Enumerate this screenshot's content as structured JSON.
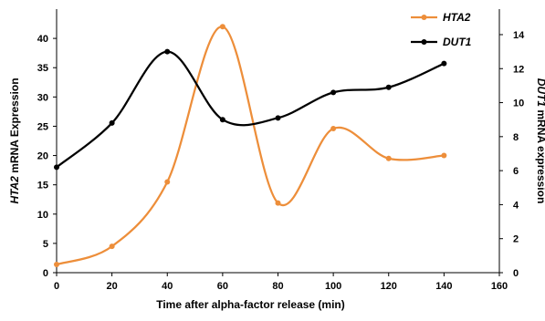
{
  "chart_data": {
    "type": "line",
    "title": "",
    "xlabel": "Time after alpha-factor release (min)",
    "ylabel_left": {
      "gene": "HTA2",
      "rest": " mRNA Expression"
    },
    "ylabel_right": {
      "gene": "DUT1",
      "rest": " mRNA expression"
    },
    "xlim": [
      0,
      160
    ],
    "xticks": [
      0,
      20,
      40,
      60,
      80,
      100,
      120,
      140,
      160
    ],
    "ylim_left": [
      0,
      45
    ],
    "yticks_left": [
      0,
      5,
      10,
      15,
      20,
      25,
      30,
      35,
      40
    ],
    "ylim_right": [
      0,
      15.5
    ],
    "yticks_right": [
      0,
      2,
      4,
      6,
      8,
      10,
      12,
      14
    ],
    "grid": false,
    "legend_position": "top-right",
    "series": [
      {
        "name": "HTA2",
        "axis": "left",
        "color": "#ED8E3A",
        "marker": "circle",
        "smooth": true,
        "x": [
          0,
          20,
          40,
          60,
          80,
          100,
          120,
          140
        ],
        "y": [
          1.4,
          4.5,
          15.5,
          42.0,
          11.9,
          24.6,
          19.5,
          20.0
        ]
      },
      {
        "name": "DUT1",
        "axis": "right",
        "color": "#000000",
        "marker": "circle",
        "smooth": true,
        "x": [
          0,
          20,
          40,
          60,
          80,
          100,
          120,
          140
        ],
        "y": [
          6.2,
          8.8,
          13.0,
          9.0,
          9.1,
          10.6,
          10.9,
          12.3
        ]
      }
    ]
  }
}
